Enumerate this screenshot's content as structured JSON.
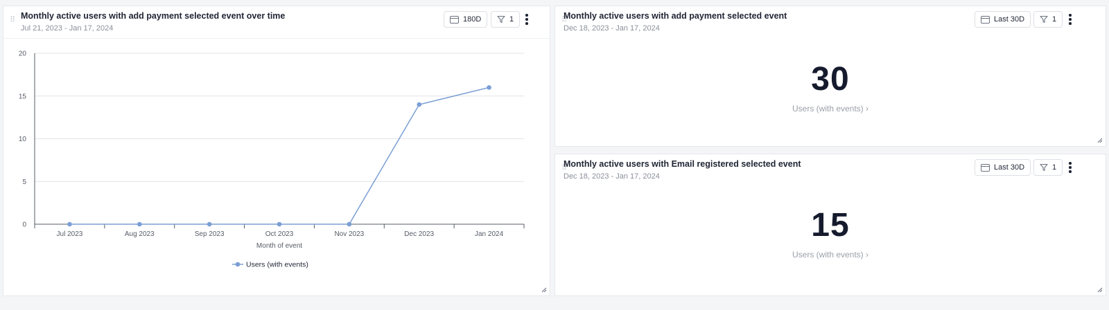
{
  "left_card": {
    "title": "Monthly active users with add payment selected event over time",
    "date_range": "Jul 21, 2023 - Jan 17, 2024",
    "range_button": "180D",
    "filter_count": "1"
  },
  "right_top_card": {
    "title": "Monthly active users with add payment selected event",
    "date_range": "Dec 18, 2023 - Jan 17, 2024",
    "range_button": "Last 30D",
    "filter_count": "1",
    "value": "30",
    "metric_label": "Users (with events) ›"
  },
  "right_bottom_card": {
    "title": "Monthly active users with Email registered selected event",
    "date_range": "Dec 18, 2023 - Jan 17, 2024",
    "range_button": "Last 30D",
    "filter_count": "1",
    "value": "15",
    "metric_label": "Users (with events) ›"
  },
  "chart_data": {
    "type": "line",
    "categories": [
      "Jul 2023",
      "Aug 2023",
      "Sep 2023",
      "Oct 2023",
      "Nov 2023",
      "Dec 2023",
      "Jan 2024"
    ],
    "series": [
      {
        "name": "Users (with events)",
        "values": [
          0,
          0,
          0,
          0,
          0,
          14,
          16
        ],
        "color": "#7b9fd4"
      }
    ],
    "xlabel": "Month of event",
    "ylabel": "",
    "ylim": [
      0,
      20
    ],
    "yticks": [
      0,
      5,
      10,
      15,
      20
    ],
    "grid": true,
    "legend_position": "bottom"
  },
  "colors": {
    "accent_line": "#7b9fd4",
    "text_primary": "#1f2433",
    "text_muted": "#8a8f99"
  }
}
